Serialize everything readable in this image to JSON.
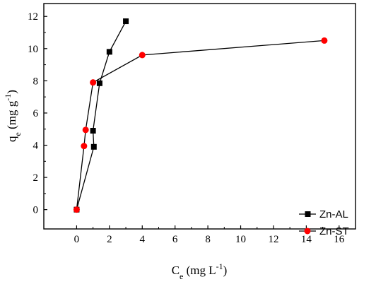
{
  "chart_data": {
    "type": "line",
    "xlabel": {
      "base": "C",
      "sub": "e",
      "unit_open": " (mg L",
      "unit_sup": "-1",
      "unit_close": ")"
    },
    "ylabel": {
      "base": "q",
      "sub": "e",
      "unit_open": " (mg g",
      "unit_sup": "-1",
      "unit_close": ")"
    },
    "xlim": [
      -2,
      17
    ],
    "ylim": [
      -1.2,
      12.8
    ],
    "xticks": [
      0,
      2,
      4,
      6,
      8,
      10,
      12,
      14,
      16
    ],
    "yticks": [
      0,
      2,
      4,
      6,
      8,
      10,
      12
    ],
    "grid": false,
    "legend_position": "bottom-right",
    "series": [
      {
        "name": "Zn-AL",
        "marker": "square",
        "color": "#000000",
        "line_color": "#000000",
        "points": [
          {
            "x": 0,
            "y": 0
          },
          {
            "x": 1.05,
            "y": 3.9
          },
          {
            "x": 1.0,
            "y": 4.9
          },
          {
            "x": 1.4,
            "y": 7.85
          },
          {
            "x": 2.0,
            "y": 9.8
          },
          {
            "x": 3.0,
            "y": 11.7
          }
        ]
      },
      {
        "name": "Zn-ST",
        "marker": "circle",
        "color": "#ff0000",
        "line_color": "#000000",
        "points": [
          {
            "x": 0,
            "y": 0
          },
          {
            "x": 0.45,
            "y": 3.95
          },
          {
            "x": 0.55,
            "y": 4.95
          },
          {
            "x": 1.0,
            "y": 7.9
          },
          {
            "x": 4.0,
            "y": 9.6
          },
          {
            "x": 15.1,
            "y": 10.5
          }
        ]
      }
    ]
  }
}
